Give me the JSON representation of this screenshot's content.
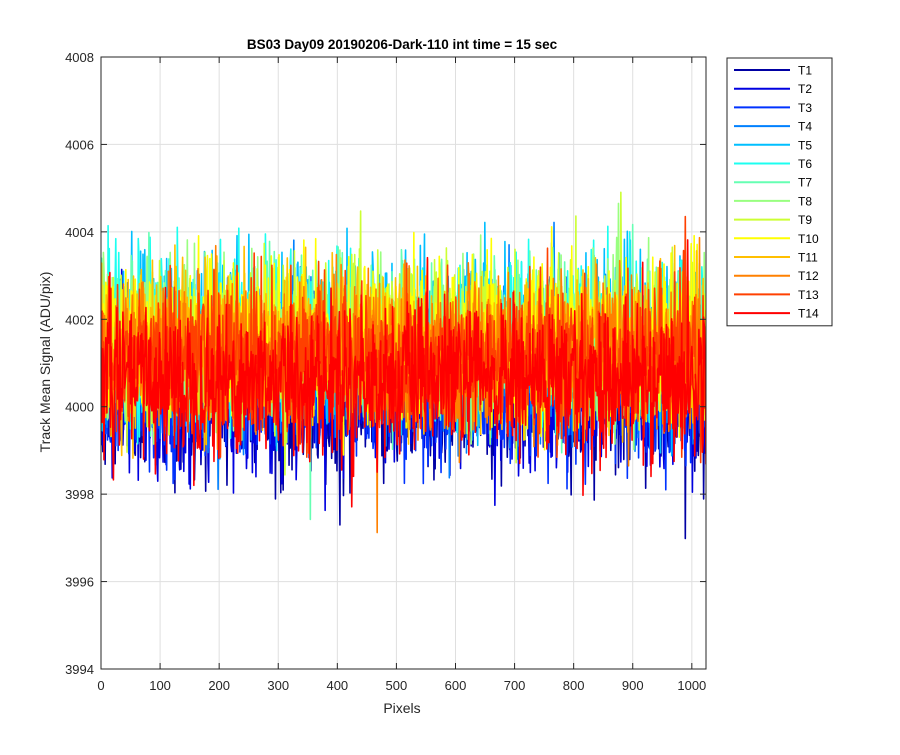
{
  "chart_data": {
    "type": "line",
    "title": "BS03 Day09 20190206-Dark-110 int time = 15 sec",
    "xlabel": "Pixels",
    "ylabel": "Track Mean Signal (ADU/pix)",
    "xlim": [
      0,
      1024
    ],
    "ylim": [
      3994,
      4008
    ],
    "xticks": [
      0,
      100,
      200,
      300,
      400,
      500,
      600,
      700,
      800,
      900,
      1000
    ],
    "yticks": [
      3994,
      3996,
      3998,
      4000,
      4002,
      4004,
      4006,
      4008
    ],
    "grid": true,
    "legend_position": "outside-top-right",
    "x_points": 1024,
    "series": [
      {
        "name": "T1",
        "color": "#0000a3",
        "mean": 4000.1,
        "noise": 0.85
      },
      {
        "name": "T2",
        "color": "#0000e0",
        "mean": 4000.3,
        "noise": 0.85
      },
      {
        "name": "T3",
        "color": "#0033ff",
        "mean": 4000.5,
        "noise": 0.85
      },
      {
        "name": "T4",
        "color": "#0080ff",
        "mean": 4001.0,
        "noise": 0.85
      },
      {
        "name": "T5",
        "color": "#00bfff",
        "mean": 4001.5,
        "noise": 0.9
      },
      {
        "name": "T6",
        "color": "#1cfff0",
        "mean": 4001.6,
        "noise": 0.9
      },
      {
        "name": "T7",
        "color": "#66ffb3",
        "mean": 4001.5,
        "noise": 0.85
      },
      {
        "name": "T8",
        "color": "#99ff80",
        "mean": 4001.4,
        "noise": 0.85
      },
      {
        "name": "T9",
        "color": "#ccff33",
        "mean": 4001.5,
        "noise": 0.9
      },
      {
        "name": "T10",
        "color": "#ffff00",
        "mean": 4001.4,
        "noise": 0.9
      },
      {
        "name": "T11",
        "color": "#ffbf00",
        "mean": 4001.3,
        "noise": 0.85
      },
      {
        "name": "T12",
        "color": "#ff8000",
        "mean": 4001.2,
        "noise": 0.85
      },
      {
        "name": "T13",
        "color": "#ff4000",
        "mean": 4001.1,
        "noise": 0.85
      },
      {
        "name": "T14",
        "color": "#ff0000",
        "mean": 4000.6,
        "noise": 0.85
      }
    ]
  }
}
